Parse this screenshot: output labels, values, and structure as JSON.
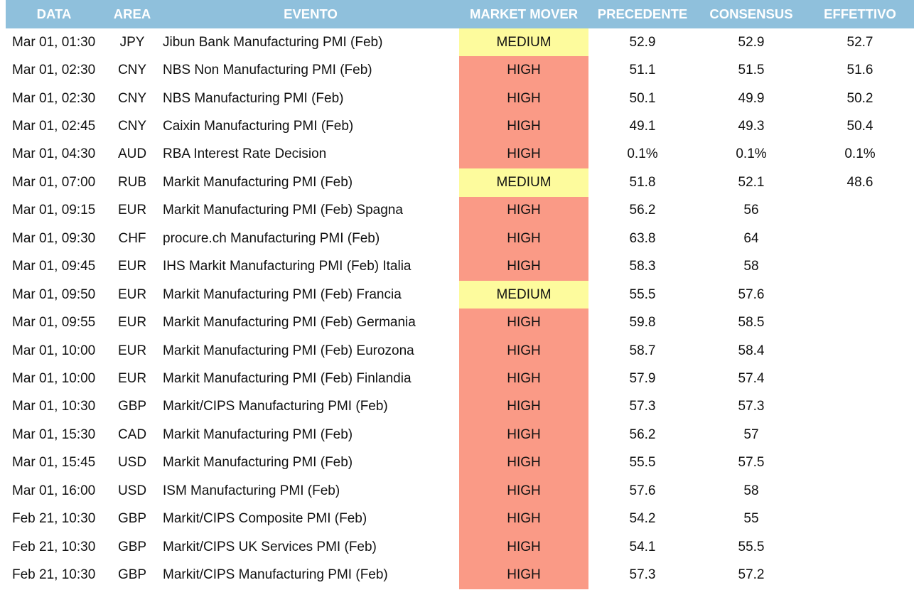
{
  "colors": {
    "header_bg": "#8fc0dc",
    "header_text": "#ffffff",
    "high": "#fa9a86",
    "medium": "#fdfb9d"
  },
  "chart_data": {
    "type": "table",
    "columns": [
      "DATA",
      "AREA",
      "EVENTO",
      "MARKET MOVER",
      "PRECEDENTE",
      "CONSENSUS",
      "EFFETTIVO"
    ],
    "rows": [
      [
        "Mar 01, 01:30",
        "JPY",
        "Jibun Bank Manufacturing PMI (Feb)",
        "MEDIUM",
        "52.9",
        "52.9",
        "52.7"
      ],
      [
        "Mar 01, 02:30",
        "CNY",
        "NBS Non Manufacturing PMI (Feb)",
        "HIGH",
        "51.1",
        "51.5",
        "51.6"
      ],
      [
        "Mar 01, 02:30",
        "CNY",
        "NBS Manufacturing PMI (Feb)",
        "HIGH",
        "50.1",
        "49.9",
        "50.2"
      ],
      [
        "Mar 01, 02:45",
        "CNY",
        "Caixin Manufacturing PMI (Feb)",
        "HIGH",
        "49.1",
        "49.3",
        "50.4"
      ],
      [
        "Mar 01, 04:30",
        "AUD",
        "RBA Interest Rate Decision",
        "HIGH",
        "0.1%",
        "0.1%",
        "0.1%"
      ],
      [
        "Mar 01, 07:00",
        "RUB",
        "Markit Manufacturing PMI (Feb)",
        "MEDIUM",
        "51.8",
        "52.1",
        "48.6"
      ],
      [
        "Mar 01, 09:15",
        "EUR",
        "Markit Manufacturing PMI (Feb) Spagna",
        "HIGH",
        "56.2",
        "56",
        ""
      ],
      [
        "Mar 01, 09:30",
        "CHF",
        "procure.ch Manufacturing PMI (Feb)",
        "HIGH",
        "63.8",
        "64",
        ""
      ],
      [
        "Mar 01, 09:45",
        "EUR",
        "IHS Markit Manufacturing PMI (Feb) Italia",
        "HIGH",
        "58.3",
        "58",
        ""
      ],
      [
        "Mar 01, 09:50",
        "EUR",
        "Markit Manufacturing PMI (Feb) Francia",
        "MEDIUM",
        "55.5",
        "57.6",
        ""
      ],
      [
        "Mar 01, 09:55",
        "EUR",
        "Markit Manufacturing PMI (Feb) Germania",
        "HIGH",
        "59.8",
        "58.5",
        ""
      ],
      [
        "Mar 01, 10:00",
        "EUR",
        "Markit Manufacturing PMI (Feb) Eurozona",
        "HIGH",
        "58.7",
        "58.4",
        ""
      ],
      [
        "Mar 01, 10:00",
        "EUR",
        "Markit Manufacturing PMI (Feb) Finlandia",
        "HIGH",
        "57.9",
        "57.4",
        ""
      ],
      [
        "Mar 01, 10:30",
        "GBP",
        "Markit/CIPS Manufacturing PMI (Feb)",
        "HIGH",
        "57.3",
        "57.3",
        ""
      ],
      [
        "Mar 01, 15:30",
        "CAD",
        "Markit Manufacturing PMI (Feb)",
        "HIGH",
        "56.2",
        "57",
        ""
      ],
      [
        "Mar 01, 15:45",
        "USD",
        "Markit Manufacturing PMI (Feb)",
        "HIGH",
        "55.5",
        "57.5",
        ""
      ],
      [
        "Mar 01, 16:00",
        "USD",
        "ISM Manufacturing PMI (Feb)",
        "HIGH",
        "57.6",
        "58",
        ""
      ],
      [
        "Feb 21, 10:30",
        "GBP",
        "Markit/CIPS Composite PMI (Feb)",
        "HIGH",
        "54.2",
        "55",
        ""
      ],
      [
        "Feb 21, 10:30",
        "GBP",
        "Markit/CIPS UK Services PMI (Feb)",
        "HIGH",
        "54.1",
        "55.5",
        ""
      ],
      [
        "Feb 21, 10:30",
        "GBP",
        "Markit/CIPS Manufacturing PMI (Feb)",
        "HIGH",
        "57.3",
        "57.2",
        ""
      ]
    ]
  }
}
